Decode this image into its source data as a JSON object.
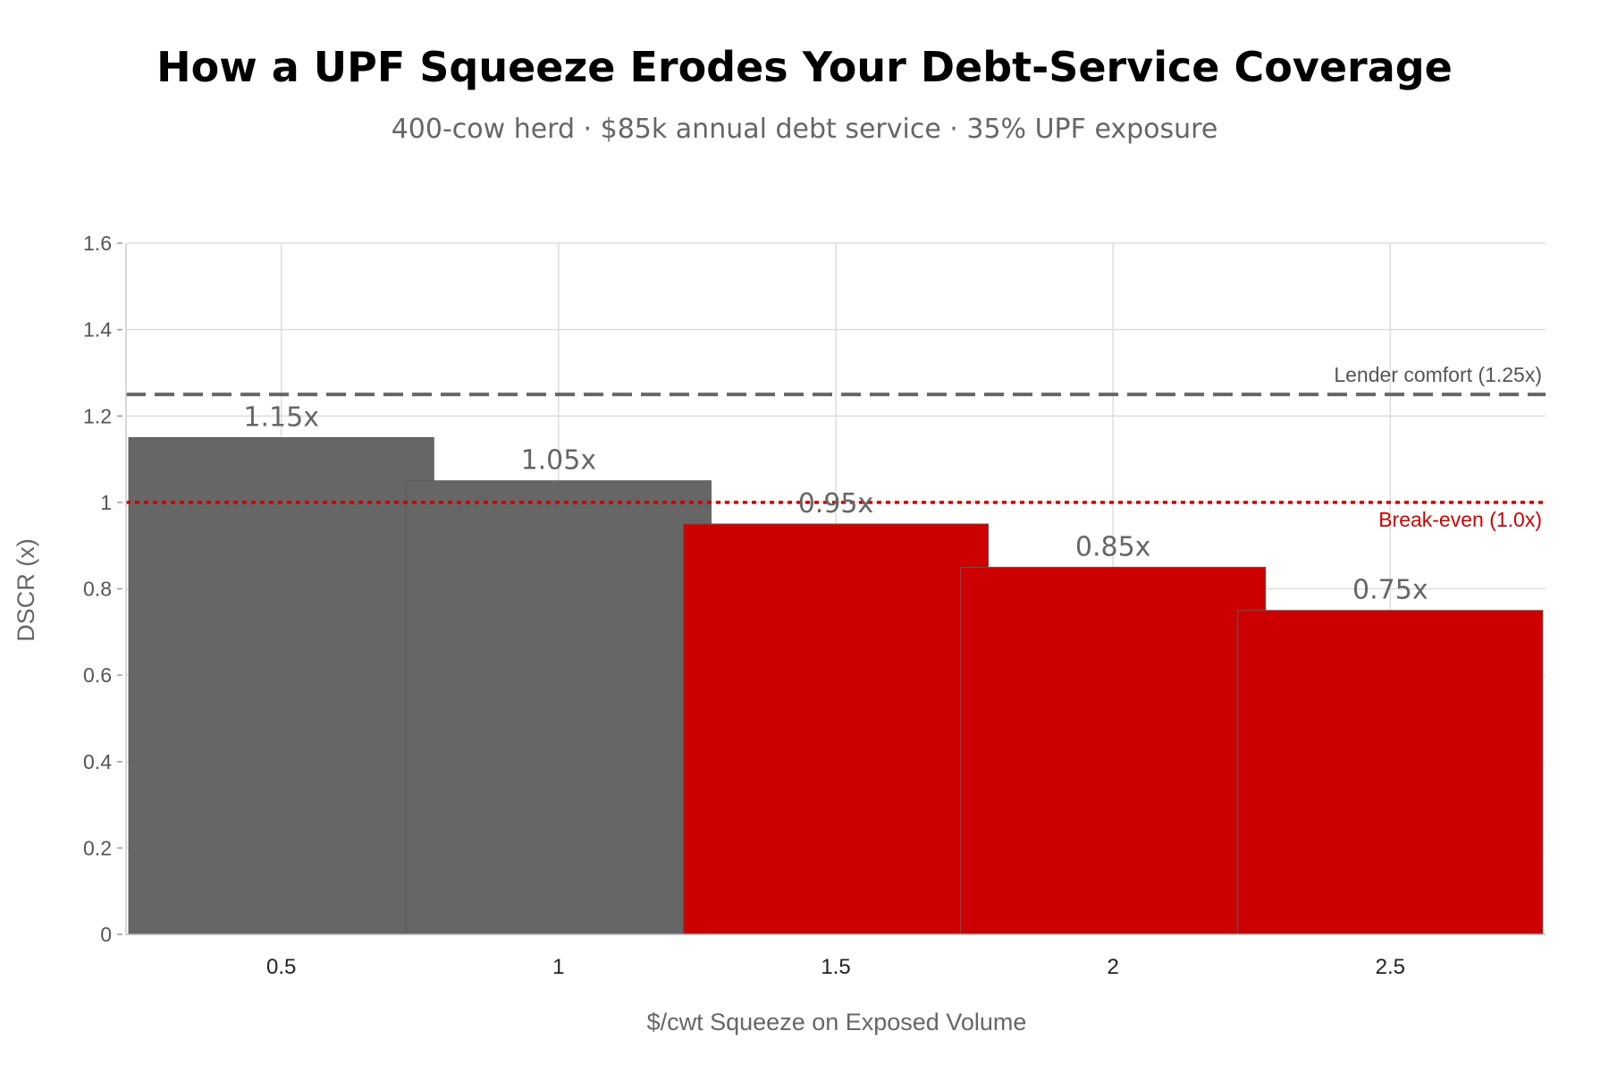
{
  "chart_data": {
    "type": "bar",
    "title": "How a UPF Squeeze Erodes Your Debt-Service Coverage",
    "subtitle": "400-cow herd · $85k annual debt service · 35% UPF exposure",
    "xlabel": "$/cwt Squeeze on Exposed Volume",
    "ylabel": "DSCR (x)",
    "x": [
      0.5,
      1.0,
      1.5,
      2.0,
      2.5
    ],
    "x_tick_labels": [
      "0.5",
      "1",
      "1.5",
      "2",
      "2.5"
    ],
    "values": [
      1.15,
      1.05,
      0.95,
      0.85,
      0.75
    ],
    "value_labels": [
      "1.15x",
      "1.05x",
      "0.95x",
      "0.85x",
      "0.75x"
    ],
    "bar_width": 0.55,
    "xlim": [
      0.22,
      2.78
    ],
    "ylim": [
      0,
      1.6
    ],
    "y_ticks": [
      0,
      0.2,
      0.4,
      0.6,
      0.8,
      1,
      1.2,
      1.4,
      1.6
    ],
    "y_tick_labels": [
      "0",
      "0.2",
      "0.4",
      "0.6",
      "0.8",
      "1",
      "1.2",
      "1.4",
      "1.6"
    ],
    "grid": true,
    "colors": {
      "above_breakeven": "#666666",
      "below_breakeven": "#cc0000",
      "gridline": "#dddddd"
    },
    "reference_lines": [
      {
        "value": 1.25,
        "label": "Lender comfort (1.25x)",
        "style": "dashed",
        "color": "#666666"
      },
      {
        "value": 1.0,
        "label": "Break-even (1.0x)",
        "style": "dotted",
        "color": "#cc0000"
      }
    ]
  }
}
